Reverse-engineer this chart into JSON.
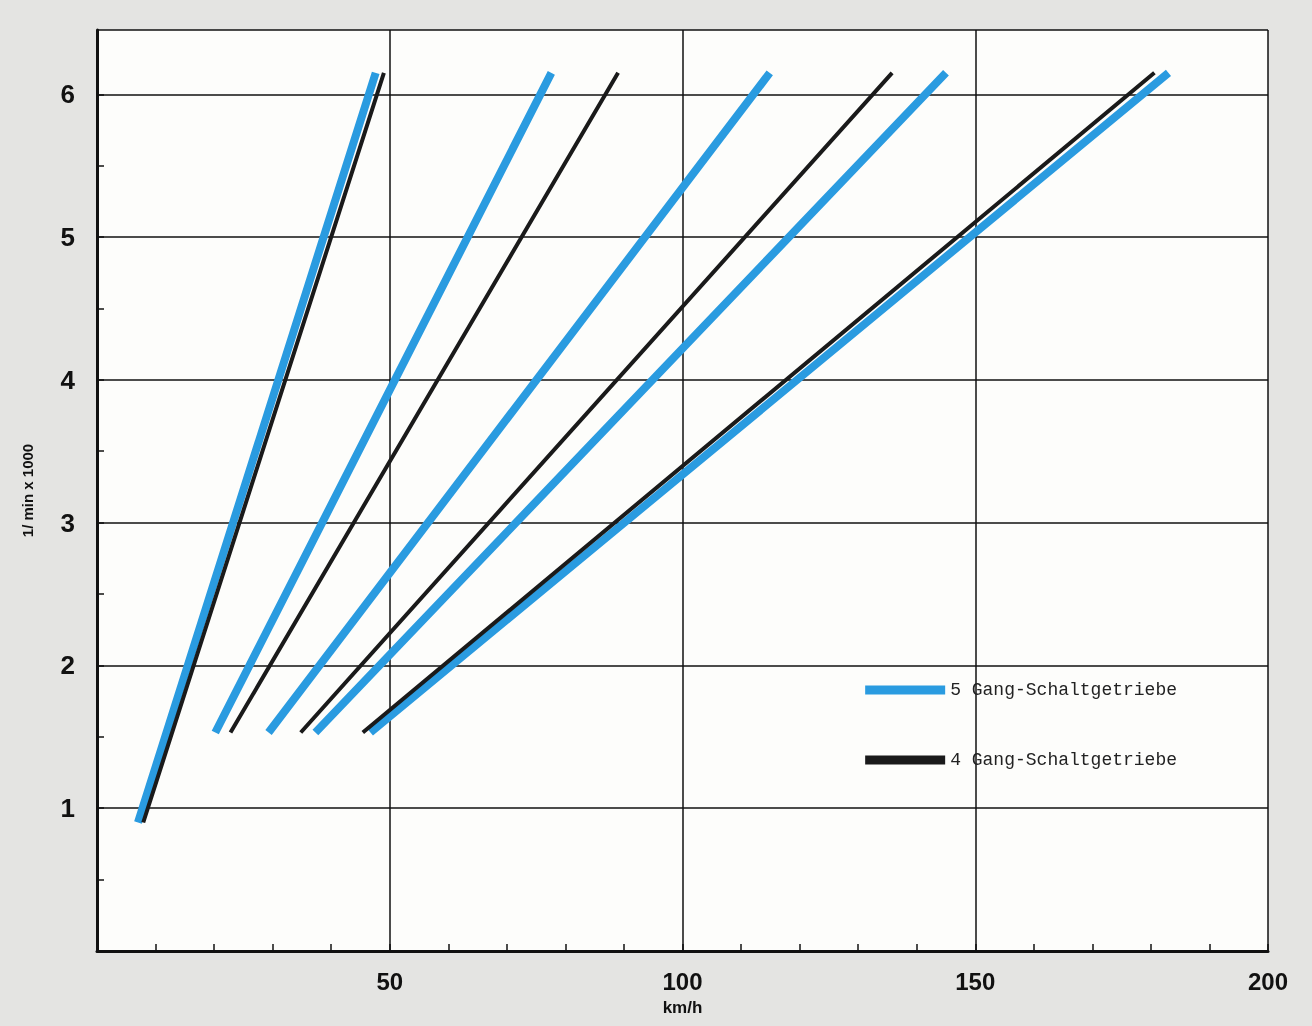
{
  "chart_data": {
    "type": "line",
    "xlabel": "km/h",
    "ylabel": "1/ min x 1000",
    "xlim": [
      0,
      200
    ],
    "ylim": [
      0,
      6.45
    ],
    "xticks": [
      {
        "value": 10,
        "label": null
      },
      {
        "value": 20,
        "label": null
      },
      {
        "value": 30,
        "label": null
      },
      {
        "value": 40,
        "label": null
      },
      50,
      {
        "value": 60,
        "label": null
      },
      {
        "value": 70,
        "label": null
      },
      {
        "value": 80,
        "label": null
      },
      {
        "value": 90,
        "label": null
      },
      100,
      {
        "value": 110,
        "label": null
      },
      {
        "value": 120,
        "label": null
      },
      {
        "value": 130,
        "label": null
      },
      {
        "value": 140,
        "label": null
      },
      150,
      {
        "value": 160,
        "label": null
      },
      {
        "value": 170,
        "label": null
      },
      {
        "value": 180,
        "label": null
      },
      {
        "value": 190,
        "label": null
      },
      200
    ],
    "yticks": [
      {
        "value": 0.5,
        "label": null
      },
      1,
      {
        "value": 1.5,
        "label": null
      },
      2,
      {
        "value": 2.5,
        "label": null
      },
      3,
      {
        "value": 3.5,
        "label": null
      },
      4,
      {
        "value": 4.5,
        "label": null
      },
      5,
      {
        "value": 5.5,
        "label": null
      },
      6
    ],
    "grid": true,
    "legend": "bottom right",
    "marker": "none",
    "line_style": "solid",
    "series": [
      {
        "name": "5 Gang-Schaltgetriebe",
        "color": "#2a9be0",
        "x": [
          7.0,
          47.6,
          null,
          20.2,
          77.6,
          null,
          29.3,
          114.9,
          null,
          37.3,
          145,
          null,
          46.7,
          183
        ],
        "values": [
          0.9,
          6.15,
          null,
          1.53,
          6.15,
          null,
          1.53,
          6.15,
          null,
          1.53,
          6.15,
          null,
          1.53,
          6.15
        ]
      },
      {
        "name": "4 Gang-Schaltgetriebe",
        "color": "#1a1a1a",
        "x": [
          7.9,
          49,
          null,
          22.8,
          89,
          null,
          34.8,
          135.8,
          null,
          45.4,
          180.6
        ],
        "values": [
          0.9,
          6.15,
          null,
          1.53,
          6.15,
          null,
          1.53,
          6.15,
          null,
          1.53,
          6.15
        ]
      }
    ]
  }
}
